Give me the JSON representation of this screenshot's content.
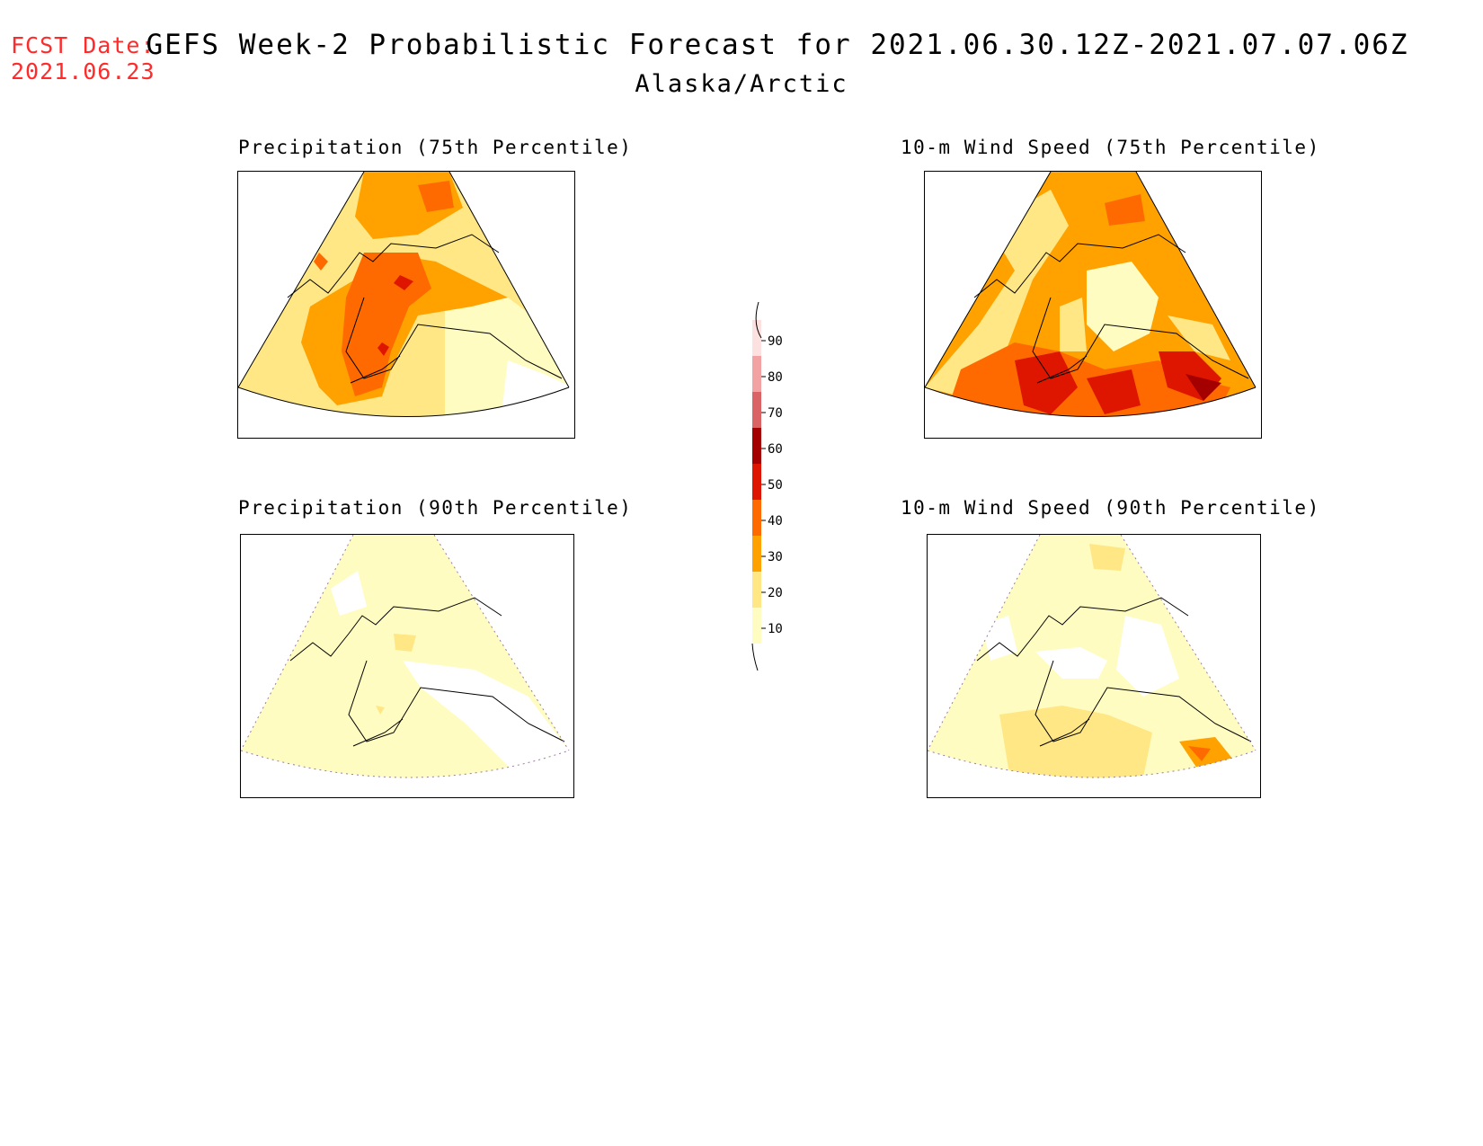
{
  "header": {
    "fcst_label": "FCST Date:",
    "fcst_date": "2021.06.23",
    "title": "GEFS Week-2 Probabilistic Forecast for 2021.06.30.12Z-2021.07.07.06Z",
    "subtitle": "Alaska/Arctic"
  },
  "panels": [
    {
      "title": "Precipitation (75th Percentile)",
      "variable": "precipitation",
      "percentile": "75th",
      "dominant_levels": [
        20,
        30,
        40,
        50
      ]
    },
    {
      "title": "10-m Wind Speed (75th Percentile)",
      "variable": "wind_speed_10m",
      "percentile": "75th",
      "dominant_levels": [
        20,
        30,
        40,
        50,
        60
      ]
    },
    {
      "title": "Precipitation (90th Percentile)",
      "variable": "precipitation",
      "percentile": "90th",
      "dominant_levels": [
        10,
        20
      ]
    },
    {
      "title": "10-m Wind Speed (90th Percentile)",
      "variable": "wind_speed_10m",
      "percentile": "90th",
      "dominant_levels": [
        10,
        20,
        30,
        40,
        50
      ]
    }
  ],
  "legend": {
    "levels": [
      "10",
      "20",
      "30",
      "40",
      "50",
      "60",
      "70",
      "80",
      "90"
    ],
    "colors": [
      "#fffcc1",
      "#ffe785",
      "#ffa200",
      "#ff6a00",
      "#de1600",
      "#a50000",
      "#d96365",
      "#f2a2a2",
      "#fde0e0"
    ]
  }
}
